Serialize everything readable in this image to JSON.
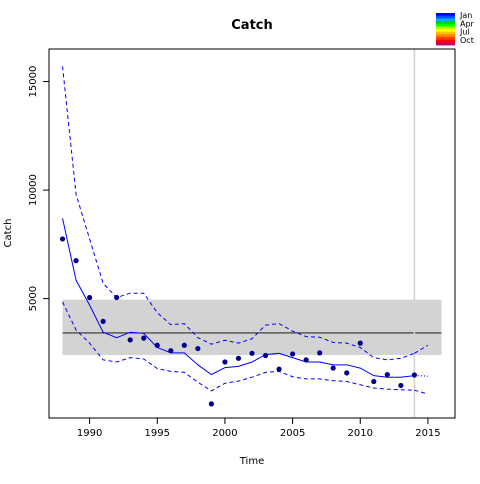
{
  "chart_data": {
    "type": "line",
    "title": "Catch",
    "xlabel": "Time",
    "ylabel": "Catch",
    "xlim": [
      1987,
      2017
    ],
    "ylim": [
      -500,
      16500
    ],
    "x_ticks": [
      1990,
      1995,
      2000,
      2005,
      2010,
      2015
    ],
    "y_ticks": [
      5000,
      10000,
      15000
    ],
    "x_tick_labels": [
      "1990",
      "1995",
      "2000",
      "2005",
      "2010",
      "2015"
    ],
    "y_tick_labels": [
      "5000",
      "10000",
      "15000"
    ],
    "reference_band": {
      "from": 2400,
      "to": 4950,
      "x_from": 1988,
      "x_to": 2016,
      "color": "#d3d3d3"
    },
    "reference_line": {
      "y": 3420,
      "x_from": 1988,
      "x_to": 2016,
      "color": "#000000"
    },
    "vertical_marker": {
      "x": 2014,
      "color": "#d3d3d3"
    },
    "legend": {
      "placement": "top-right",
      "labels": [
        "Jan",
        "Apr",
        "Jul",
        "Oct"
      ],
      "colors": [
        "#0000ff",
        "#0050ff",
        "#00aaff",
        "#00d200",
        "#00ff00",
        "#a0ff00",
        "#ffff00",
        "#ffc000",
        "#ff8000",
        "#ff4000",
        "#ff0000",
        "#c00060"
      ]
    },
    "series": [
      {
        "role": "observed",
        "style": "points",
        "color": "#00008b",
        "x": [
          1988,
          1989,
          1990,
          1991,
          1992,
          1993,
          1994,
          1995,
          1996,
          1997,
          1998,
          1999,
          2000,
          2001,
          2002,
          2003,
          2004,
          2005,
          2006,
          2007,
          2008,
          2009,
          2010,
          2011,
          2012,
          2013,
          2014
        ],
        "values": [
          7750,
          6750,
          5050,
          3950,
          5050,
          3100,
          3180,
          2850,
          2600,
          2850,
          2700,
          150,
          2080,
          2250,
          2480,
          2380,
          1750,
          2450,
          2180,
          2500,
          1800,
          1580,
          2950,
          1180,
          1500,
          1000,
          1480
        ]
      },
      {
        "role": "fit",
        "style": "solid",
        "color": "#0000ff",
        "x": [
          1988,
          1989,
          1990,
          1991,
          1992,
          1993,
          1994,
          1995,
          1996,
          1997,
          1998,
          1999,
          2000,
          2001,
          2002,
          2003,
          2004,
          2005,
          2006,
          2007,
          2008,
          2009,
          2010,
          2011,
          2012,
          2013,
          2014
        ],
        "values": [
          8700,
          5850,
          4700,
          3450,
          3200,
          3450,
          3400,
          2750,
          2500,
          2500,
          1950,
          1500,
          1820,
          1880,
          2080,
          2420,
          2480,
          2280,
          2080,
          2080,
          1950,
          1950,
          1800,
          1450,
          1380,
          1380,
          1450
        ]
      },
      {
        "role": "upper-bound",
        "style": "dashed",
        "color": "#0000ff",
        "x": [
          1988,
          1989,
          1990,
          1991,
          1992,
          1993,
          1994,
          1995,
          1996,
          1997,
          1998,
          1999,
          2000,
          2001,
          2002,
          2003,
          2004,
          2005,
          2006,
          2007,
          2008,
          2009,
          2010,
          2011,
          2012,
          2013,
          2014
        ],
        "values": [
          15700,
          9800,
          7750,
          5700,
          5050,
          5250,
          5250,
          4350,
          3800,
          3850,
          3200,
          2900,
          3080,
          2950,
          3150,
          3780,
          3850,
          3500,
          3250,
          3220,
          2980,
          2950,
          2750,
          2280,
          2180,
          2250,
          2480
        ]
      },
      {
        "role": "lower-bound",
        "style": "dashed",
        "color": "#0000ff",
        "x": [
          1988,
          1989,
          1990,
          1991,
          1992,
          1993,
          1994,
          1995,
          1996,
          1997,
          1998,
          1999,
          2000,
          2001,
          2002,
          2003,
          2004,
          2005,
          2006,
          2007,
          2008,
          2009,
          2010,
          2011,
          2012,
          2013,
          2014
        ],
        "values": [
          4850,
          3550,
          2950,
          2180,
          2080,
          2280,
          2220,
          1780,
          1650,
          1600,
          1150,
          750,
          1100,
          1200,
          1380,
          1600,
          1650,
          1400,
          1300,
          1300,
          1220,
          1180,
          1030,
          880,
          830,
          800,
          780
        ]
      },
      {
        "role": "projection-mean",
        "style": "dotted",
        "color": "#0000ff",
        "x": [
          2014,
          2015
        ],
        "values": [
          1450,
          1430
        ]
      },
      {
        "role": "projection-upper",
        "style": "dashed",
        "color": "#0000ff",
        "x": [
          2014,
          2015
        ],
        "values": [
          2480,
          2850
        ]
      },
      {
        "role": "projection-lower",
        "style": "dashed",
        "color": "#0000ff",
        "x": [
          2014,
          2015
        ],
        "values": [
          780,
          600
        ]
      }
    ]
  }
}
